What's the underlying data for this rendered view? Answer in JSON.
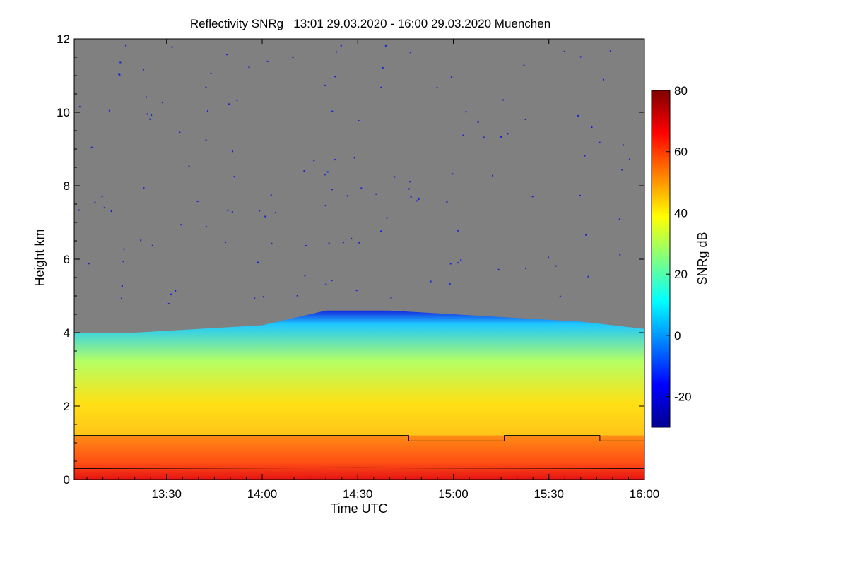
{
  "chart_data": {
    "type": "heatmap",
    "title": "Reflectivity SNRg   13:01 29.03.2020 - 16:00 29.03.2020 Muenchen",
    "xlabel": "Time UTC",
    "ylabel": "Height km",
    "xlim": [
      "13:01",
      "16:00"
    ],
    "xticks": [
      "13:30",
      "14:00",
      "14:30",
      "15:00",
      "15:30",
      "16:00"
    ],
    "ylim": [
      0,
      12
    ],
    "yticks": [
      "0",
      "2",
      "4",
      "6",
      "8",
      "10",
      "12"
    ],
    "colorbar": {
      "label": "SNRg dB",
      "range": [
        -30,
        80
      ],
      "ticks": [
        "-20",
        "0",
        "20",
        "40",
        "60",
        "80"
      ],
      "colormap": [
        "#00008f",
        "#0000ff",
        "#0080ff",
        "#00ffff",
        "#80ff80",
        "#ffff00",
        "#ff8000",
        "#ff0000",
        "#800000"
      ]
    },
    "background_color": "#808080",
    "cloud_top_km": [
      {
        "t": "13:01",
        "h": 4.0
      },
      {
        "t": "13:20",
        "h": 4.0
      },
      {
        "t": "13:40",
        "h": 4.1
      },
      {
        "t": "14:00",
        "h": 4.2
      },
      {
        "t": "14:20",
        "h": 4.6
      },
      {
        "t": "14:40",
        "h": 4.6
      },
      {
        "t": "15:00",
        "h": 4.5
      },
      {
        "t": "15:20",
        "h": 4.4
      },
      {
        "t": "15:40",
        "h": 4.3
      },
      {
        "t": "16:00",
        "h": 4.1
      }
    ],
    "overlay_lines": [
      {
        "name": "upper step line",
        "points": [
          {
            "t": "13:01",
            "h": 1.2
          },
          {
            "t": "14:46",
            "h": 1.2
          },
          {
            "t": "14:46",
            "h": 1.05
          },
          {
            "t": "15:16",
            "h": 1.05
          },
          {
            "t": "15:16",
            "h": 1.2
          },
          {
            "t": "15:46",
            "h": 1.2
          },
          {
            "t": "15:46",
            "h": 1.05
          },
          {
            "t": "16:00",
            "h": 1.05
          }
        ]
      },
      {
        "name": "lower line",
        "points": [
          {
            "t": "13:01",
            "h": 0.3
          },
          {
            "t": "14:30",
            "h": 0.32
          },
          {
            "t": "16:00",
            "h": 0.3
          }
        ]
      }
    ]
  }
}
